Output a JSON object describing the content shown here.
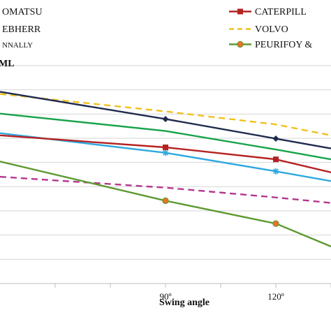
{
  "chart_data": {
    "type": "line",
    "title": "",
    "xlabel": "Swing angle",
    "ylabel": "",
    "ylabel_fragment": "ML",
    "x": [
      45,
      60,
      75,
      90,
      105,
      120,
      135
    ],
    "xlim": [
      45,
      135
    ],
    "xticks": [
      {
        "value": 90,
        "label": "90º"
      },
      {
        "value": 120,
        "label": "120º"
      }
    ],
    "ylim": [
      0,
      1
    ],
    "grid": "horizontal",
    "legend_position": "top",
    "series": [
      {
        "name": "OMATSU",
        "color": "#1f2a4e",
        "marker": "diamond",
        "dash": "solid",
        "values": [
          0.88,
          null,
          null,
          0.755,
          null,
          0.665,
          0.62
        ]
      },
      {
        "name": "EBHERR",
        "color": "#17a34a",
        "marker": "none",
        "dash": "solid",
        "values": [
          0.78,
          null,
          null,
          0.7,
          null,
          0.615,
          0.57
        ]
      },
      {
        "name": "NNALLY",
        "color": "#b5358f",
        "marker": "none",
        "dash": "dashed",
        "values": [
          0.49,
          null,
          null,
          0.44,
          null,
          0.395,
          0.37
        ]
      },
      {
        "name": "CATERPILL",
        "color": "#b52222",
        "marker": "square",
        "dash": "solid",
        "values": [
          0.68,
          null,
          null,
          0.625,
          null,
          0.57,
          0.51
        ]
      },
      {
        "name": "VOLVO",
        "color": "#f0c01e",
        "marker": "none",
        "dash": "dashed",
        "values": [
          0.87,
          null,
          null,
          0.79,
          null,
          0.73,
          0.68
        ]
      },
      {
        "name": "PEURIFOY &",
        "color": "#5e9a32",
        "marker": "circle",
        "dash": "solid",
        "values": [
          0.56,
          null,
          null,
          0.38,
          null,
          0.275,
          0.17
        ]
      },
      {
        "name": "",
        "color": "#2ea9df",
        "marker": "star",
        "dash": "solid",
        "values": [
          0.69,
          null,
          null,
          0.6,
          null,
          0.515,
          0.47
        ]
      }
    ]
  }
}
